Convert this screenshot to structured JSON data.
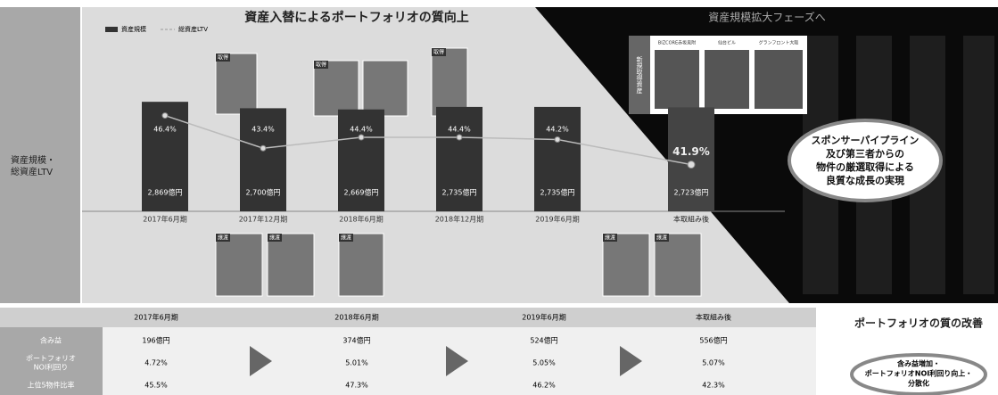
{
  "chart_data": {
    "type": "bar",
    "title": "資産入替によるポートフォリオの質向上",
    "side_label": [
      "資産規模・",
      "総資産LTV"
    ],
    "categories": [
      "2017年6月期",
      "2017年12月期",
      "2018年6月期",
      "2018年12月期",
      "2019年6月期",
      "本取組み後"
    ],
    "series": [
      {
        "name": "資産規模",
        "color": "#333333",
        "values": [
          2869,
          2700,
          2669,
          2735,
          2735,
          2723
        ],
        "value_labels": [
          "2,869億円",
          "2,700億円",
          "2,669億円",
          "2,735億円",
          "2,735億円",
          "2,723億円"
        ]
      },
      {
        "name": "総資産LTV",
        "type": "line",
        "axis": "y2",
        "color": "#bbbbbb",
        "values": [
          46.4,
          43.4,
          44.4,
          44.4,
          44.2,
          41.9
        ],
        "value_labels": [
          "46.4%",
          "43.4%",
          "44.4%",
          "44.4%",
          "44.2%",
          "41.9%"
        ]
      }
    ],
    "ylim": [
      0,
      3200
    ],
    "y2lim": [
      35,
      48
    ],
    "phase_title": "資産規模拡大フェーズへ",
    "new_tag": "新規取得資産",
    "new_assets": [
      "BIZCORE赤坂見附",
      "仙台ビル",
      "グランフロント大阪"
    ],
    "acquire_tag": "取得",
    "dispose_tag": "譲渡",
    "callout": [
      "スポンサーパイプライン",
      "及び第三者からの",
      "物件の厳選取得による",
      "良質な成長の実現"
    ]
  },
  "table": {
    "columns": [
      "2017年6月期",
      "2018年6月期",
      "2019年6月期",
      "本取組み後"
    ],
    "rows": [
      {
        "label": [
          "含み益"
        ],
        "values": [
          "196億円",
          "374億円",
          "524億円",
          "556億円"
        ]
      },
      {
        "label": [
          "ポートフォリオ",
          "NOI利回り"
        ],
        "values": [
          "4.72%",
          "5.01%",
          "5.05%",
          "5.07%"
        ]
      },
      {
        "label": [
          "上位5物件比率"
        ],
        "values": [
          "45.5%",
          "47.3%",
          "46.2%",
          "42.3%"
        ]
      }
    ],
    "summary_title": "ポートフォリオの質の改善",
    "summary": [
      "含み益増加・",
      "ポートフォリオNOI利回り向上・",
      "分散化"
    ]
  }
}
